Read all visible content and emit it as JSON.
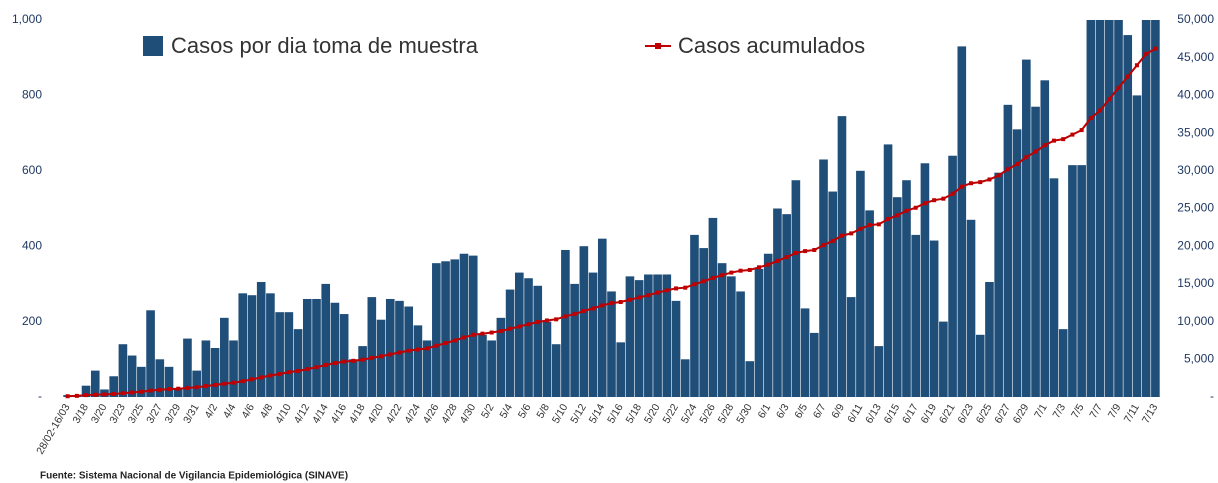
{
  "chart_data": {
    "type": "bar-line",
    "source": "Fuente: Sistema Nacional de Vigilancia Epidemiológica (SINAVE)",
    "categories": [
      "28/02-16/03",
      null,
      "3/18",
      null,
      "3/20",
      null,
      "3/23",
      null,
      "3/25",
      null,
      "3/27",
      null,
      "3/29",
      null,
      "3/31",
      null,
      "4/2",
      null,
      "4/4",
      null,
      "4/6",
      null,
      "4/8",
      null,
      "4/10",
      null,
      "4/12",
      null,
      "4/14",
      null,
      "4/16",
      null,
      "4/18",
      null,
      "4/20",
      null,
      "4/22",
      null,
      "4/24",
      null,
      "4/26",
      null,
      "4/28",
      null,
      "4/30",
      null,
      "5/2",
      null,
      "5/4",
      null,
      "5/6",
      null,
      "5/8",
      null,
      "5/10",
      null,
      "5/12",
      null,
      "5/14",
      null,
      "5/16",
      null,
      "5/18",
      null,
      "5/20",
      null,
      "5/22",
      null,
      "5/24",
      null,
      "5/26",
      null,
      "5/28",
      null,
      "5/30",
      null,
      "6/1",
      null,
      "6/3",
      null,
      "6/5",
      null,
      "6/7",
      null,
      "6/9",
      null,
      "6/11",
      null,
      "6/13",
      null,
      "6/15",
      null,
      "6/17",
      null,
      "6/19",
      null,
      "6/21",
      null,
      "6/23",
      null,
      "6/25",
      null,
      "6/27",
      null,
      "6/29",
      null,
      "7/1",
      null,
      "7/3",
      null,
      "7/5",
      null,
      "7/7",
      null,
      "7/9",
      null,
      "7/11",
      null,
      "7/13"
    ],
    "series": [
      {
        "name": "Casos por dia toma de muestra",
        "kind": "bar",
        "color": "#1f4e79",
        "values": [
          5,
          5,
          30,
          70,
          20,
          55,
          140,
          110,
          80,
          230,
          100,
          80,
          20,
          155,
          70,
          150,
          130,
          210,
          150,
          275,
          270,
          305,
          275,
          225,
          225,
          180,
          260,
          260,
          300,
          250,
          220,
          100,
          135,
          265,
          205,
          260,
          255,
          240,
          190,
          150,
          355,
          360,
          365,
          380,
          375,
          165,
          150,
          210,
          285,
          330,
          315,
          295,
          200,
          140,
          390,
          300,
          400,
          330,
          420,
          280,
          145,
          320,
          310,
          325,
          325,
          325,
          255,
          100,
          430,
          395,
          475,
          355,
          320,
          280,
          95,
          340,
          380,
          500,
          485,
          575,
          235,
          170,
          630,
          545,
          745,
          265,
          600,
          495,
          135,
          670,
          530,
          575,
          430,
          620,
          415,
          200,
          640,
          930,
          470,
          165,
          305,
          595,
          775,
          710,
          895,
          770,
          840,
          580,
          180,
          615,
          615,
          1100,
          1150,
          1200,
          1050,
          960,
          800,
          1050,
          1020
        ]
      },
      {
        "name": "Casos acumulados",
        "kind": "line",
        "axis": "y2",
        "color": "#c00000",
        "values": [
          100,
          150,
          250,
          300,
          350,
          400,
          500,
          600,
          700,
          850,
          950,
          1050,
          1100,
          1200,
          1300,
          1450,
          1600,
          1750,
          1900,
          2100,
          2350,
          2600,
          2850,
          3050,
          3300,
          3450,
          3700,
          3950,
          4250,
          4500,
          4700,
          4800,
          4950,
          5200,
          5400,
          5650,
          5900,
          6150,
          6300,
          6450,
          6800,
          7150,
          7500,
          7900,
          8250,
          8400,
          8550,
          8750,
          9050,
          9350,
          9650,
          9950,
          10150,
          10300,
          10700,
          11000,
          11400,
          11750,
          12150,
          12450,
          12600,
          12900,
          13200,
          13500,
          13850,
          14150,
          14400,
          14500,
          14950,
          15350,
          15800,
          16150,
          16500,
          16750,
          16850,
          17200,
          17550,
          18050,
          18550,
          19100,
          19350,
          19500,
          20150,
          20700,
          21400,
          21700,
          22300,
          22800,
          22900,
          23600,
          24100,
          24700,
          25100,
          25700,
          26100,
          26300,
          26950,
          27900,
          28350,
          28500,
          28850,
          29400,
          30200,
          30900,
          31800,
          32550,
          33400,
          34000,
          34200,
          34800,
          35400,
          37000,
          38000,
          39500,
          41000,
          42500,
          44000,
          45500,
          46200
        ]
      }
    ],
    "ylim": [
      0,
      1000
    ],
    "yticks": [
      {
        "value": 0,
        "label": "-"
      },
      200,
      400,
      600,
      800,
      {
        "value": 1000,
        "label": "1,000"
      }
    ],
    "y2lim": [
      0,
      50000
    ],
    "y2ticks": [
      {
        "value": 0,
        "label": "-"
      },
      {
        "value": 5000,
        "label": "5,000"
      },
      {
        "value": 10000,
        "label": "10,000"
      },
      {
        "value": 15000,
        "label": "15,000"
      },
      {
        "value": 20000,
        "label": "20,000"
      },
      {
        "value": 25000,
        "label": "25,000"
      },
      {
        "value": 30000,
        "label": "30,000"
      },
      {
        "value": 35000,
        "label": "35,000"
      },
      {
        "value": 40000,
        "label": "40,000"
      },
      {
        "value": 45000,
        "label": "45,000"
      },
      {
        "value": 50000,
        "label": "50,000"
      }
    ],
    "legend": "top"
  }
}
